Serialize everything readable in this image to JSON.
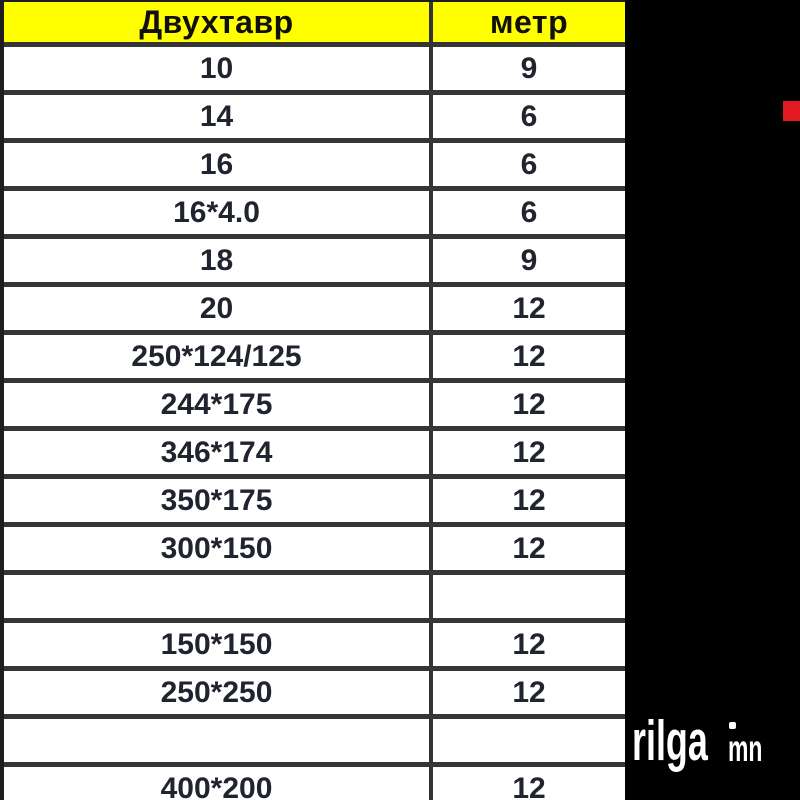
{
  "chart_data": {
    "type": "table",
    "columns": [
      "Двухтавр",
      "метр"
    ],
    "rows": [
      [
        "10",
        "9"
      ],
      [
        "14",
        "6"
      ],
      [
        "16",
        "6"
      ],
      [
        "16*4.0",
        "6"
      ],
      [
        "18",
        "9"
      ],
      [
        "20",
        "12"
      ],
      [
        "250*124/125",
        "12"
      ],
      [
        "244*175",
        "12"
      ],
      [
        "346*174",
        "12"
      ],
      [
        "350*175",
        "12"
      ],
      [
        "300*150",
        "12"
      ],
      [
        "",
        ""
      ],
      [
        "150*150",
        "12"
      ],
      [
        "250*250",
        "12"
      ],
      [
        "",
        ""
      ],
      [
        "400*200",
        "12"
      ]
    ]
  },
  "watermark": {
    "visible_text": "rilga",
    "suffix": "mn"
  },
  "colors": {
    "background": "#000000",
    "header_bg": "#ffff00",
    "table_bg": "#ffffff",
    "border": "#363636",
    "cell_text": "#20242e",
    "accent_red": "#e11b21",
    "watermark": "#ffffff"
  }
}
